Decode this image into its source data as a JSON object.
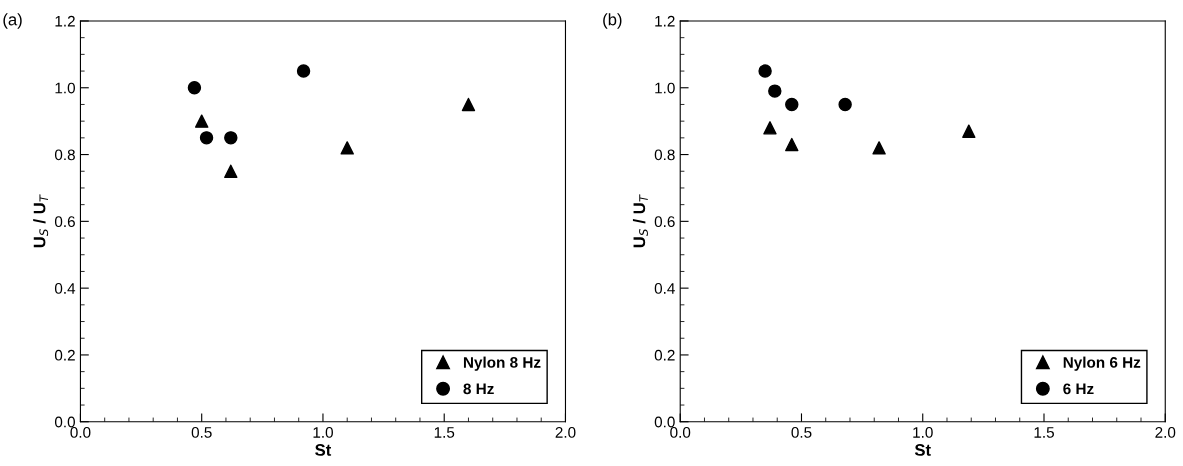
{
  "chart_data": [
    {
      "type": "scatter",
      "xlabel": "St",
      "ylabel": "U$_{S}$ / U$_{T}$",
      "annotations": [
        "(a)"
      ],
      "legend": "bottom right",
      "xlim": [
        0,
        2
      ],
      "ylim": [
        0,
        1.2
      ],
      "xticks": [
        {
          "value": 0,
          "label": "0.0"
        },
        {
          "value": 0.1,
          "label": null
        },
        {
          "value": 0.2,
          "label": null
        },
        {
          "value": 0.3,
          "label": null
        },
        {
          "value": 0.4,
          "label": null
        },
        {
          "value": 0.5,
          "label": "0.5"
        },
        {
          "value": 0.6,
          "label": null
        },
        {
          "value": 0.7,
          "label": null
        },
        {
          "value": 0.8,
          "label": null
        },
        {
          "value": 0.9,
          "label": null
        },
        {
          "value": 1.0,
          "label": "1.0"
        },
        {
          "value": 1.1,
          "label": null
        },
        {
          "value": 1.2,
          "label": null
        },
        {
          "value": 1.3,
          "label": null
        },
        {
          "value": 1.4,
          "label": null
        },
        {
          "value": 1.5,
          "label": "1.5"
        },
        {
          "value": 1.6,
          "label": null
        },
        {
          "value": 1.7,
          "label": null
        },
        {
          "value": 1.8,
          "label": null
        },
        {
          "value": 1.9,
          "label": null
        },
        {
          "value": 2.0,
          "label": "2.0"
        }
      ],
      "yticks": [
        {
          "value": 0,
          "label": "0.0"
        },
        {
          "value": 0.05,
          "label": null
        },
        {
          "value": 0.1,
          "label": null
        },
        {
          "value": 0.15,
          "label": null
        },
        {
          "value": 0.2,
          "label": "0.2"
        },
        {
          "value": 0.25,
          "label": null
        },
        {
          "value": 0.3,
          "label": null
        },
        {
          "value": 0.35,
          "label": null
        },
        {
          "value": 0.4,
          "label": "0.4"
        },
        {
          "value": 0.45,
          "label": null
        },
        {
          "value": 0.5,
          "label": null
        },
        {
          "value": 0.55,
          "label": null
        },
        {
          "value": 0.6,
          "label": "0.6"
        },
        {
          "value": 0.65,
          "label": null
        },
        {
          "value": 0.7,
          "label": null
        },
        {
          "value": 0.75,
          "label": null
        },
        {
          "value": 0.8,
          "label": "0.8"
        },
        {
          "value": 0.85,
          "label": null
        },
        {
          "value": 0.9,
          "label": null
        },
        {
          "value": 0.95,
          "label": null
        },
        {
          "value": 1.0,
          "label": "1.0"
        },
        {
          "value": 1.05,
          "label": null
        },
        {
          "value": 1.1,
          "label": null
        },
        {
          "value": 1.15,
          "label": null
        },
        {
          "value": 1.2,
          "label": "1.2"
        }
      ],
      "series": [
        {
          "name": "Nylon 8 Hz",
          "color": "#000000",
          "marker": "triangle",
          "x": [
            0.5,
            0.62,
            1.1,
            1.6
          ],
          "values": [
            0.9,
            0.75,
            0.82,
            0.95
          ]
        },
        {
          "name": "8 Hz",
          "color": "#000000",
          "marker": "circle",
          "x": [
            0.47,
            0.52,
            0.62,
            0.92
          ],
          "values": [
            1.0,
            0.85,
            0.85,
            1.05
          ]
        }
      ]
    },
    {
      "type": "scatter",
      "xlabel": "St",
      "ylabel": "U$_{S}$ / U$_{T}$",
      "annotations": [
        "(b)"
      ],
      "legend": "bottom right",
      "xlim": [
        0,
        2
      ],
      "ylim": [
        0,
        1.2
      ],
      "xticks": [
        {
          "value": 0,
          "label": "0.0"
        },
        {
          "value": 0.1,
          "label": null
        },
        {
          "value": 0.2,
          "label": null
        },
        {
          "value": 0.3,
          "label": null
        },
        {
          "value": 0.4,
          "label": null
        },
        {
          "value": 0.5,
          "label": "0.5"
        },
        {
          "value": 0.6,
          "label": null
        },
        {
          "value": 0.7,
          "label": null
        },
        {
          "value": 0.8,
          "label": null
        },
        {
          "value": 0.9,
          "label": null
        },
        {
          "value": 1.0,
          "label": "1.0"
        },
        {
          "value": 1.1,
          "label": null
        },
        {
          "value": 1.2,
          "label": null
        },
        {
          "value": 1.3,
          "label": null
        },
        {
          "value": 1.4,
          "label": null
        },
        {
          "value": 1.5,
          "label": "1.5"
        },
        {
          "value": 1.6,
          "label": null
        },
        {
          "value": 1.7,
          "label": null
        },
        {
          "value": 1.8,
          "label": null
        },
        {
          "value": 1.9,
          "label": null
        },
        {
          "value": 2.0,
          "label": "2.0"
        }
      ],
      "yticks": [
        {
          "value": 0,
          "label": "0.0"
        },
        {
          "value": 0.05,
          "label": null
        },
        {
          "value": 0.1,
          "label": null
        },
        {
          "value": 0.15,
          "label": null
        },
        {
          "value": 0.2,
          "label": "0.2"
        },
        {
          "value": 0.25,
          "label": null
        },
        {
          "value": 0.3,
          "label": null
        },
        {
          "value": 0.35,
          "label": null
        },
        {
          "value": 0.4,
          "label": "0.4"
        },
        {
          "value": 0.45,
          "label": null
        },
        {
          "value": 0.5,
          "label": null
        },
        {
          "value": 0.55,
          "label": null
        },
        {
          "value": 0.6,
          "label": "0.6"
        },
        {
          "value": 0.65,
          "label": null
        },
        {
          "value": 0.7,
          "label": null
        },
        {
          "value": 0.75,
          "label": null
        },
        {
          "value": 0.8,
          "label": "0.8"
        },
        {
          "value": 0.85,
          "label": null
        },
        {
          "value": 0.9,
          "label": null
        },
        {
          "value": 0.95,
          "label": null
        },
        {
          "value": 1.0,
          "label": "1.0"
        },
        {
          "value": 1.05,
          "label": null
        },
        {
          "value": 1.1,
          "label": null
        },
        {
          "value": 1.15,
          "label": null
        },
        {
          "value": 1.2,
          "label": "1.2"
        }
      ],
      "series": [
        {
          "name": "Nylon 6 Hz",
          "color": "#000000",
          "marker": "triangle",
          "x": [
            0.37,
            0.46,
            0.82,
            1.19
          ],
          "values": [
            0.88,
            0.83,
            0.82,
            0.87
          ]
        },
        {
          "name": "6 Hz",
          "color": "#000000",
          "marker": "circle",
          "x": [
            0.35,
            0.39,
            0.46,
            0.68
          ],
          "values": [
            1.05,
            0.99,
            0.95,
            0.95
          ]
        }
      ]
    }
  ]
}
